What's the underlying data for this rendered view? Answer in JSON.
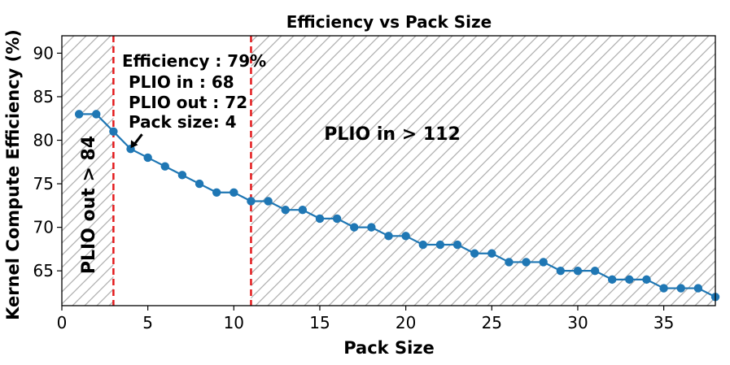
{
  "chart_data": {
    "type": "line",
    "title": "Efficiency vs Pack Size",
    "xlabel": "Pack Size",
    "ylabel": "Kernel Compute Efficiency (%)",
    "xlim": [
      0,
      38
    ],
    "ylim": [
      61,
      92
    ],
    "x_ticks": [
      0,
      5,
      10,
      15,
      20,
      25,
      30,
      35
    ],
    "y_ticks": [
      65,
      70,
      75,
      80,
      85,
      90
    ],
    "grid": false,
    "series": [
      {
        "name": "Efficiency",
        "color": "#1f77b4",
        "x": [
          1,
          2,
          3,
          4,
          5,
          6,
          7,
          8,
          9,
          10,
          11,
          12,
          13,
          14,
          15,
          16,
          17,
          18,
          19,
          20,
          21,
          22,
          23,
          24,
          25,
          26,
          27,
          28,
          29,
          30,
          31,
          32,
          33,
          34,
          35,
          36,
          37,
          38
        ],
        "values": [
          83,
          83,
          81,
          79,
          78,
          77,
          76,
          75,
          74,
          74,
          73,
          73,
          72,
          72,
          71,
          71,
          70,
          70,
          69,
          69,
          68,
          68,
          68,
          67,
          67,
          66,
          66,
          66,
          65,
          65,
          65,
          64,
          64,
          64,
          63,
          63,
          63,
          62
        ]
      }
    ],
    "vlines": [
      {
        "x": 3,
        "color": "#e31a1c",
        "style": "dashed"
      },
      {
        "x": 11,
        "color": "#e31a1c",
        "style": "dashed"
      }
    ],
    "shaded_regions": [
      {
        "x_start": 0,
        "x_end": 3,
        "hatch": "diagonal",
        "color": "#b0b0b0"
      },
      {
        "x_start": 11,
        "x_end": 38,
        "hatch": "diagonal",
        "color": "#b0b0b0"
      }
    ],
    "annotations": {
      "lines": [
        "Efficiency : 79%",
        "PLIO in : 68",
        "PLIO out : 72",
        "Pack size: 4"
      ],
      "arrow_target": {
        "x": 4,
        "y": 79
      }
    },
    "region_labels": {
      "left": "PLIO out > 84",
      "right": "PLIO in > 112"
    }
  }
}
